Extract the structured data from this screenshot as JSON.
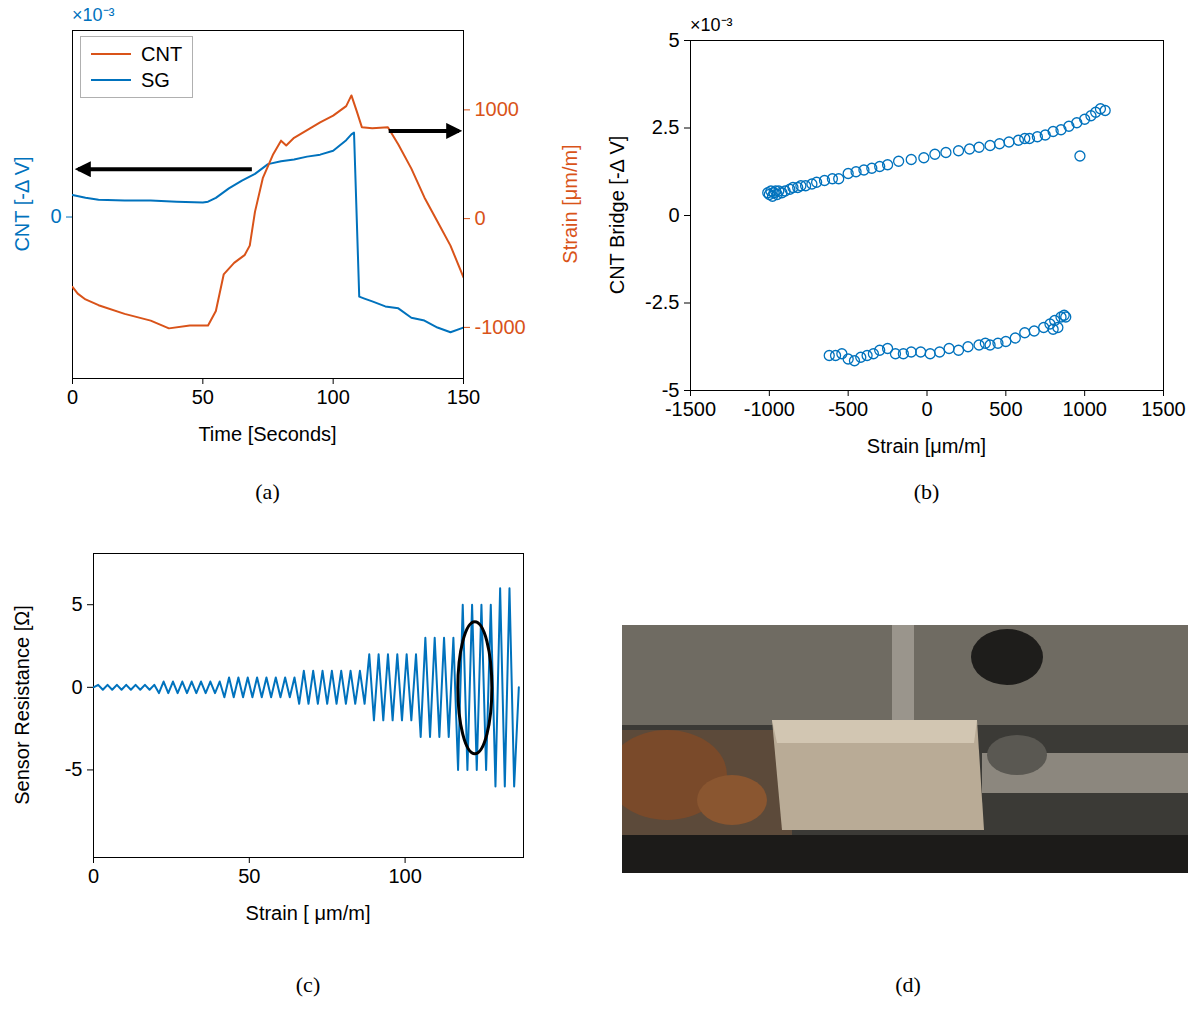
{
  "chart_data": [
    {
      "type": "line",
      "title": "(a)",
      "xlabel": "Time [Seconds]",
      "ylabel": "CNT [-Δ V]",
      "ylabel_multiplier": "×10⁻³",
      "y2label": "Strain [μm/m]",
      "xlim": [
        0,
        150
      ],
      "xticks": [
        0,
        50,
        100,
        150
      ],
      "ylim": [
        -5.8,
        6.7
      ],
      "yticks": [
        0
      ],
      "y2lim": [
        -1470,
        1730
      ],
      "y2ticks": [
        -1000,
        0,
        1000
      ],
      "legend": "upper left",
      "series": [
        {
          "name": "CNT",
          "color": "#D95319",
          "axis": "y2",
          "x": [
            0,
            2,
            5,
            10,
            20,
            30,
            37,
            45,
            52,
            55,
            58,
            62,
            66,
            68,
            70,
            73,
            77,
            80,
            82,
            85,
            90,
            95,
            100,
            105,
            107,
            109,
            111,
            115,
            121,
            125,
            130,
            135,
            140,
            145,
            150
          ],
          "values": [
            -628,
            -690,
            -743,
            -796,
            -876,
            -938,
            -1009,
            -982,
            -982,
            -850,
            -513,
            -407,
            -336,
            -248,
            62,
            372,
            593,
            717,
            673,
            743,
            814,
            885,
            947,
            1035,
            1133,
            991,
            841,
            832,
            841,
            681,
            460,
            195,
            -27,
            -248,
            -540
          ]
        },
        {
          "name": "SG",
          "color": "#0072BD",
          "x": [
            0,
            5,
            10,
            20,
            30,
            40,
            50,
            52,
            55,
            60,
            65,
            70,
            75,
            80,
            85,
            90,
            95,
            100,
            105,
            107,
            108,
            110,
            112,
            115,
            120,
            125,
            130,
            135,
            140,
            145,
            150
          ],
          "values": [
            0.79,
            0.69,
            0.62,
            0.59,
            0.59,
            0.55,
            0.52,
            0.55,
            0.69,
            1.03,
            1.31,
            1.55,
            1.9,
            2.0,
            2.07,
            2.17,
            2.24,
            2.38,
            2.76,
            2.97,
            3.03,
            -2.86,
            -2.93,
            -3.03,
            -3.21,
            -3.28,
            -3.62,
            -3.72,
            -3.97,
            -4.14,
            -3.97
          ]
        }
      ]
    },
    {
      "type": "scatter",
      "title": "(b)",
      "xlabel": "Strain [μm/m]",
      "ylabel": "CNT Bridge [-Δ V]",
      "ylabel_multiplier": "×10⁻³",
      "xlim": [
        -1500,
        1500
      ],
      "xticks": [
        -1500,
        -1000,
        -500,
        0,
        500,
        1000,
        1500
      ],
      "ylim": [
        -5,
        5
      ],
      "yticks": [
        -5,
        -2.5,
        0,
        2.5,
        5
      ],
      "marker": "circle",
      "color": "#0072BD",
      "x": [
        -1010,
        -1000,
        -990,
        -980,
        -970,
        -960,
        -950,
        -940,
        -920,
        -900,
        -870,
        -850,
        -820,
        -800,
        -770,
        -730,
        -700,
        -650,
        -600,
        -560,
        -500,
        -450,
        -400,
        -350,
        -300,
        -250,
        -180,
        -100,
        -20,
        50,
        120,
        200,
        270,
        330,
        400,
        460,
        520,
        580,
        620,
        650,
        700,
        750,
        800,
        850,
        900,
        950,
        1000,
        1040,
        1070,
        1100,
        1130,
        970,
        -620,
        -580,
        -540,
        -500,
        -460,
        -420,
        -380,
        -340,
        -300,
        -250,
        -200,
        -150,
        -100,
        -40,
        20,
        80,
        140,
        200,
        260,
        330,
        370,
        400,
        450,
        500,
        560,
        620,
        680,
        740,
        780,
        800,
        810,
        830,
        850,
        870,
        880
      ],
      "values": [
        0.65,
        0.6,
        0.7,
        0.55,
        0.65,
        0.7,
        0.6,
        0.7,
        0.65,
        0.7,
        0.75,
        0.8,
        0.8,
        0.85,
        0.85,
        0.9,
        0.95,
        1.0,
        1.05,
        1.05,
        1.2,
        1.25,
        1.3,
        1.35,
        1.4,
        1.45,
        1.55,
        1.6,
        1.65,
        1.75,
        1.8,
        1.85,
        1.9,
        1.95,
        2.0,
        2.05,
        2.1,
        2.15,
        2.2,
        2.2,
        2.25,
        2.3,
        2.4,
        2.45,
        2.55,
        2.65,
        2.75,
        2.85,
        2.95,
        3.05,
        3.0,
        1.7,
        -4.0,
        -4.0,
        -3.95,
        -4.1,
        -4.15,
        -4.05,
        -4.0,
        -3.95,
        -3.85,
        -3.8,
        -3.95,
        -3.95,
        -3.9,
        -3.9,
        -3.95,
        -3.9,
        -3.8,
        -3.85,
        -3.75,
        -3.7,
        -3.65,
        -3.7,
        -3.65,
        -3.6,
        -3.5,
        -3.35,
        -3.3,
        -3.2,
        -3.1,
        -3.25,
        -3.0,
        -3.2,
        -2.9,
        -2.85,
        -2.9
      ]
    },
    {
      "type": "line",
      "title": "(c)",
      "xlabel": "Strain [ μm/m]",
      "ylabel": "Sensor Resistance [Ω]",
      "xlim": [
        0,
        138
      ],
      "xticks": [
        0,
        50,
        100
      ],
      "ylim": [
        -10.3,
        8.1
      ],
      "yticks": [
        -5,
        0,
        5
      ],
      "color": "#0072BD",
      "x": [
        0,
        1.5,
        3,
        4.5,
        6,
        7.5,
        9,
        10.5,
        12,
        13.5,
        15,
        16.5,
        18,
        19.5,
        21,
        22.5,
        24,
        25.5,
        27,
        28.5,
        30,
        31.5,
        33,
        34.5,
        36,
        37.5,
        39,
        40.5,
        42,
        43.5,
        45,
        46.5,
        48,
        49.5,
        51,
        52.5,
        54,
        55.5,
        57,
        58.5,
        60,
        61.5,
        63,
        64.5,
        66,
        67.5,
        69,
        70.5,
        72,
        73.5,
        75,
        76.5,
        78,
        79.5,
        81,
        82.5,
        84,
        85.5,
        87,
        88.5,
        90,
        91.5,
        93,
        94.5,
        96,
        97.5,
        99,
        100.5,
        102,
        103.5,
        105,
        106.5,
        108,
        109.5,
        111,
        112.5,
        114,
        115.5,
        117,
        118.5,
        120,
        121.5,
        123,
        124.5,
        126,
        127.5,
        129,
        130.5,
        132,
        133.5,
        135,
        136.5
      ],
      "values": [
        0,
        0.15,
        -0.15,
        0.15,
        -0.15,
        0.15,
        -0.15,
        0.15,
        -0.15,
        0.15,
        -0.15,
        0.15,
        -0.15,
        0.15,
        -0.35,
        0.35,
        -0.35,
        0.35,
        -0.35,
        0.35,
        -0.35,
        0.35,
        -0.35,
        0.35,
        -0.35,
        0.35,
        -0.35,
        0.35,
        -0.6,
        0.6,
        -0.6,
        0.6,
        -0.6,
        0.6,
        -0.6,
        0.6,
        -0.6,
        0.6,
        -0.6,
        0.6,
        -0.6,
        0.6,
        -0.6,
        0.6,
        -1,
        1,
        -1,
        1,
        -1,
        1,
        -1,
        1,
        -1,
        1,
        -1,
        1,
        -1,
        1,
        -1,
        2,
        -2,
        2,
        -2,
        2,
        -2,
        2,
        -2,
        2,
        -2,
        2,
        -3,
        3,
        -3,
        3,
        -3,
        3,
        -3,
        3,
        -5,
        5,
        -5,
        5,
        -5,
        5,
        -5,
        5,
        -6,
        6,
        -6,
        6,
        -6,
        0
      ]
    }
  ],
  "photo": {
    "caption": "(d)"
  }
}
